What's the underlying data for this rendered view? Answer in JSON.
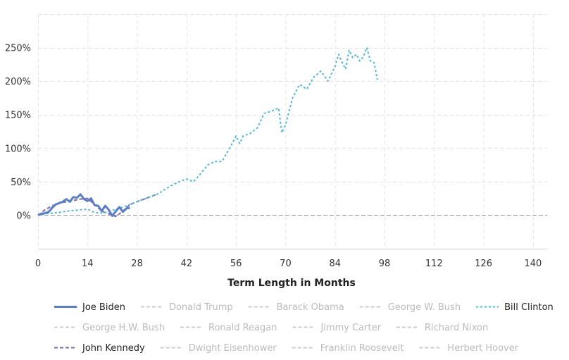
{
  "chart_data": {
    "type": "line",
    "title": "",
    "xlabel": "Term Length in Months",
    "ylabel": "",
    "xlim": [
      0,
      144
    ],
    "ylim": [
      -50,
      300
    ],
    "x_ticks": [
      0,
      14,
      28,
      42,
      56,
      70,
      84,
      98,
      112,
      126,
      140
    ],
    "x_tick_labels": [
      "0",
      "14",
      "28",
      "42",
      "56",
      "70",
      "84",
      "98",
      "112",
      "126",
      "140"
    ],
    "y_ticks": [
      0,
      50,
      100,
      150,
      200,
      250
    ],
    "y_tick_labels": [
      "0%",
      "50%",
      "100%",
      "150%",
      "200%",
      "250%"
    ],
    "grid": true,
    "baseline": 0,
    "legend_position": "bottom",
    "series": [
      {
        "name": "Joe Biden",
        "active": true,
        "color": "#5b7fc4",
        "dash": "solid",
        "x": [
          0,
          1,
          2,
          3,
          4,
          5,
          6,
          7,
          8,
          9,
          10,
          11,
          12,
          13,
          14,
          15,
          16,
          17,
          18,
          19,
          20,
          21,
          22,
          23,
          24,
          25,
          26
        ],
        "y": [
          0,
          2,
          3,
          5,
          11,
          16,
          18,
          20,
          24,
          20,
          27,
          26,
          31,
          24,
          21,
          25,
          15,
          14,
          6,
          14,
          8,
          -1,
          6,
          12,
          5,
          10,
          11
        ]
      },
      {
        "name": "Bill Clinton",
        "active": true,
        "color": "#55b6cf",
        "dash": "dotted",
        "x": [
          0,
          2,
          4,
          6,
          8,
          10,
          12,
          14,
          16,
          18,
          20,
          22,
          24,
          26,
          28,
          30,
          32,
          34,
          36,
          38,
          40,
          42,
          44,
          46,
          48,
          50,
          52,
          54,
          56,
          57,
          58,
          60,
          62,
          64,
          66,
          68,
          69,
          70,
          72,
          74,
          76,
          78,
          80,
          82,
          84,
          85,
          86,
          87,
          88,
          89,
          90,
          91,
          92,
          93,
          94,
          95,
          96
        ],
        "y": [
          0,
          2,
          3,
          4,
          6,
          7,
          8,
          9,
          4,
          3,
          5,
          9,
          12,
          16,
          20,
          24,
          28,
          32,
          39,
          45,
          50,
          54,
          50,
          62,
          75,
          80,
          80,
          98,
          118,
          107,
          118,
          122,
          130,
          152,
          155,
          160,
          123,
          135,
          175,
          195,
          188,
          206,
          215,
          200,
          222,
          240,
          228,
          218,
          246,
          235,
          240,
          230,
          236,
          250,
          230,
          228,
          202
        ]
      },
      {
        "name": "John Kennedy",
        "active": true,
        "color": "#7b6bb0",
        "dash": "dashed",
        "x": [
          0,
          2,
          4,
          6,
          8,
          10,
          12,
          14,
          16,
          18,
          20,
          22,
          24,
          26,
          28,
          30,
          32,
          34
        ],
        "y": [
          0,
          8,
          14,
          18,
          20,
          22,
          24,
          25,
          16,
          6,
          2,
          -2,
          6,
          16,
          20,
          24,
          28,
          32
        ]
      },
      {
        "name": "Donald Trump",
        "active": false,
        "color": "#cccccc",
        "dash": "dashed",
        "x": [],
        "y": []
      },
      {
        "name": "Barack Obama",
        "active": false,
        "color": "#cccccc",
        "dash": "dashed",
        "x": [],
        "y": []
      },
      {
        "name": "George W. Bush",
        "active": false,
        "color": "#cccccc",
        "dash": "dashed",
        "x": [],
        "y": []
      },
      {
        "name": "George H.W. Bush",
        "active": false,
        "color": "#cccccc",
        "dash": "dashed",
        "x": [],
        "y": []
      },
      {
        "name": "Ronald Reagan",
        "active": false,
        "color": "#cccccc",
        "dash": "dashed",
        "x": [],
        "y": []
      },
      {
        "name": "Jimmy Carter",
        "active": false,
        "color": "#cccccc",
        "dash": "dashed",
        "x": [],
        "y": []
      },
      {
        "name": "Richard Nixon",
        "active": false,
        "color": "#cccccc",
        "dash": "dashed",
        "x": [],
        "y": []
      },
      {
        "name": "Dwight Eisenhower",
        "active": false,
        "color": "#cccccc",
        "dash": "dashed",
        "x": [],
        "y": []
      },
      {
        "name": "Franklin Roosevelt",
        "active": false,
        "color": "#cccccc",
        "dash": "dashed",
        "x": [],
        "y": []
      },
      {
        "name": "Herbert Hoover",
        "active": false,
        "color": "#cccccc",
        "dash": "dashed",
        "x": [],
        "y": []
      }
    ],
    "legend": [
      [
        "Joe Biden",
        "Donald Trump",
        "Barack Obama",
        "George W. Bush",
        "Bill Clinton"
      ],
      [
        "George H.W. Bush",
        "Ronald Reagan",
        "Jimmy Carter",
        "Richard Nixon"
      ],
      [
        "John Kennedy",
        "Dwight Eisenhower",
        "Franklin Roosevelt",
        "Herbert Hoover"
      ]
    ],
    "colors": {
      "grid": "#e3e3e3",
      "baseline": "#999999",
      "axis": "#cccccc",
      "legend_active_text": "#222222",
      "legend_inactive_text": "#bbbbbb"
    }
  }
}
